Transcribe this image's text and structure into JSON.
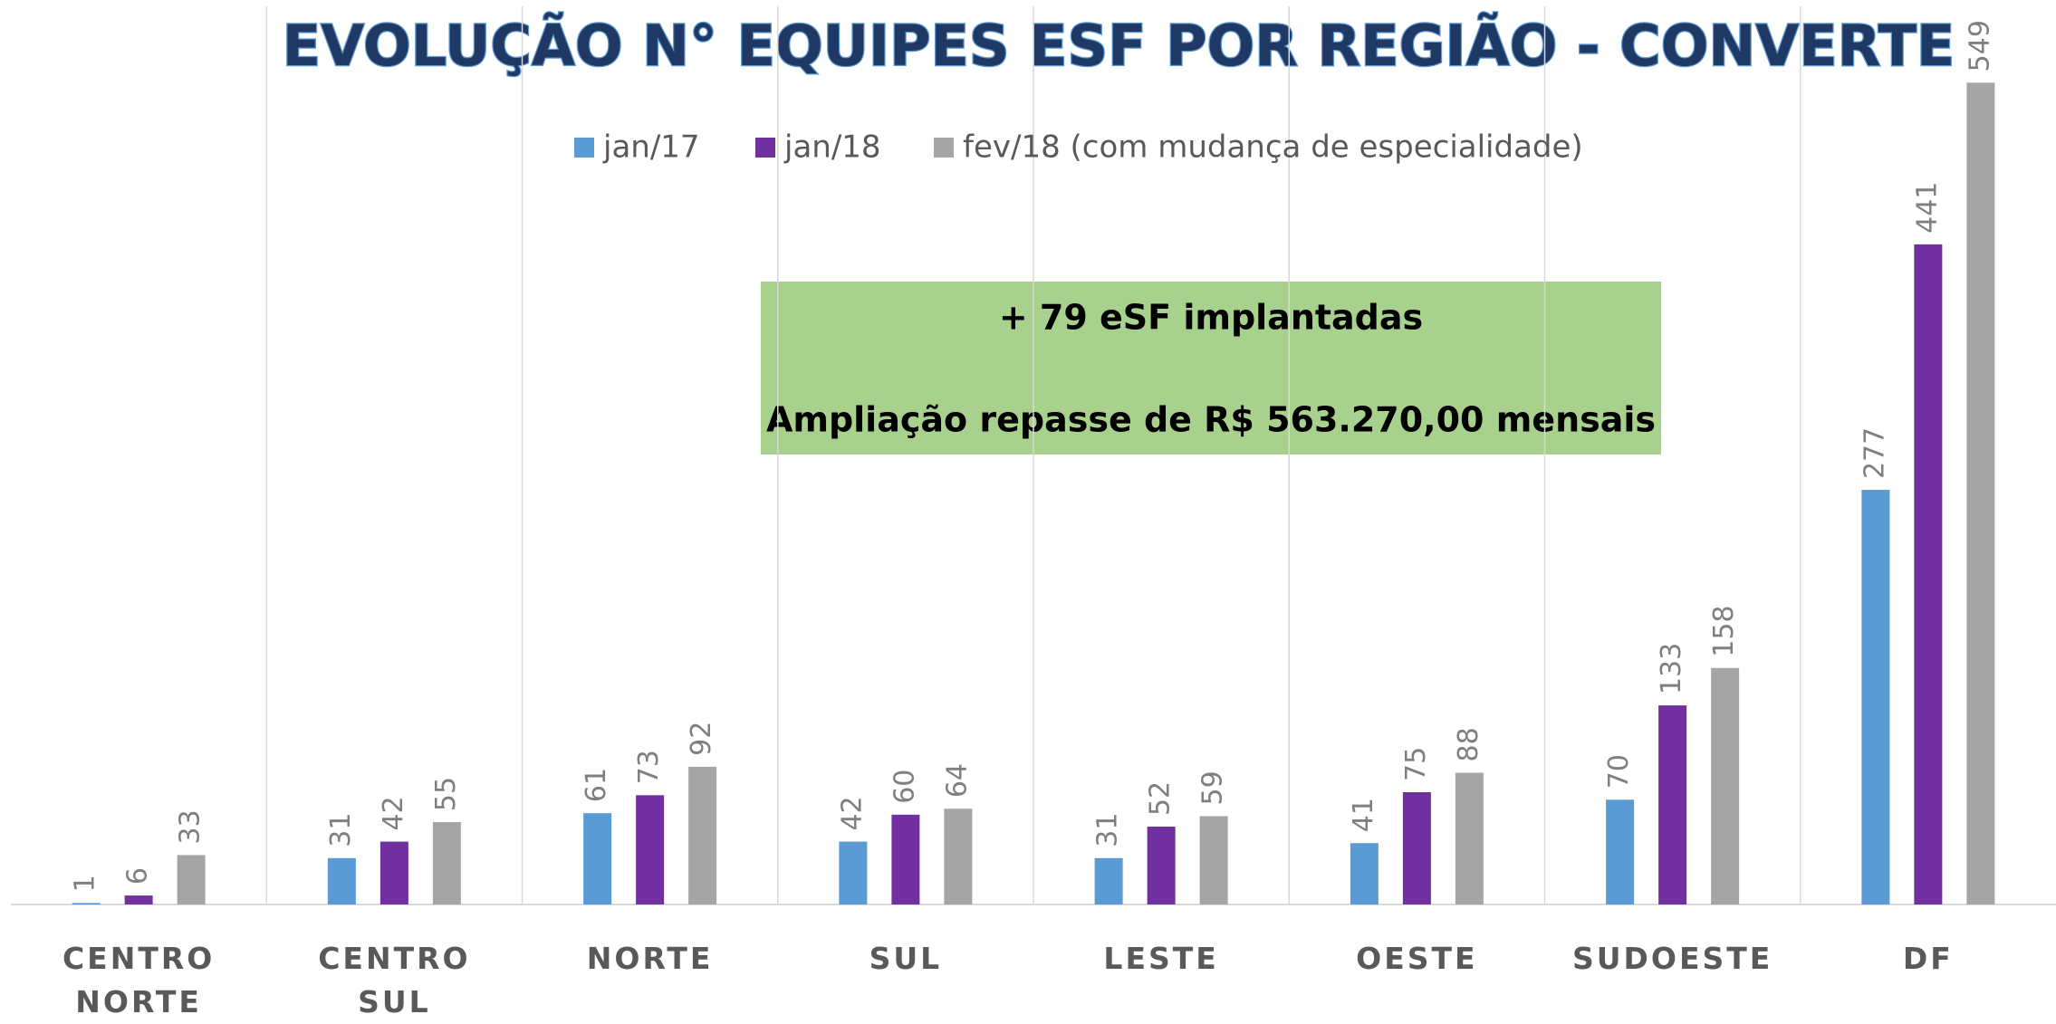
{
  "chart_data": {
    "type": "bar",
    "title": "EVOLUÇÃO N° EQUIPES ESF POR REGIÃO - CONVERTE",
    "categories": [
      "CENTRO NORTE",
      "CENTRO SUL",
      "NORTE",
      "SUL",
      "LESTE",
      "OESTE",
      "SUDOESTE",
      "DF"
    ],
    "series": [
      {
        "name": "jan/17",
        "color": "#5b9bd5",
        "values": [
          1,
          31,
          61,
          42,
          31,
          41,
          70,
          277
        ]
      },
      {
        "name": "jan/18",
        "color": "#7030a0",
        "values": [
          6,
          42,
          73,
          60,
          52,
          75,
          133,
          441
        ]
      },
      {
        "name": "fev/18 (com mudança de especialidade)",
        "color": "#a5a5a5",
        "values": [
          33,
          55,
          92,
          64,
          59,
          88,
          158,
          549
        ]
      }
    ],
    "ylim": [
      0,
      600
    ],
    "legend": "top",
    "annotations": [
      "+ 79 eSF implantadas",
      "Ampliação repasse de R$ 563.270,00 mensais"
    ]
  }
}
